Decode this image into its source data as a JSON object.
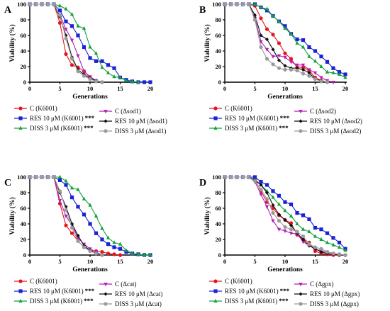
{
  "figure": {
    "style": {
      "colors": [
        "#e8141c",
        "#1a22d6",
        "#12a13a",
        "#b21fb8",
        "#111111",
        "#9a9a9a"
      ],
      "markers": [
        "circle",
        "square",
        "triangle",
        "triangle-down",
        "diamond",
        "circle"
      ]
    }
  },
  "chart_data": [
    {
      "panel_label": "A",
      "type": "line",
      "xlabel": "Generations",
      "ylabel": "Viability (%)",
      "xlim": [
        0,
        20
      ],
      "ylim": [
        0,
        100
      ],
      "xticks": [
        "0",
        "5",
        "10",
        "15",
        "20"
      ],
      "yticks": [
        "0",
        "20",
        "40",
        "60",
        "80",
        "100"
      ],
      "legend_position": "below",
      "series": [
        {
          "name": "C (K6001)",
          "sig": "",
          "x": [
            0,
            1,
            2,
            3,
            4,
            5,
            6,
            7,
            8,
            9,
            10,
            11,
            12
          ],
          "y": [
            100,
            100,
            100,
            100,
            100,
            76,
            36,
            22,
            19,
            14,
            6,
            1,
            0
          ]
        },
        {
          "name": "RES 10 μM (K6001)",
          "sig": "***",
          "x": [
            0,
            1,
            2,
            3,
            4,
            5,
            6,
            7,
            8,
            9,
            10,
            11,
            12,
            13,
            14,
            15,
            16,
            17,
            18,
            19,
            20
          ],
          "y": [
            100,
            100,
            100,
            100,
            100,
            92,
            78,
            72,
            60,
            45,
            31,
            27,
            27,
            22,
            18,
            6,
            3,
            1,
            0,
            0,
            0
          ]
        },
        {
          "name": "DISS 3 μM (K6001)",
          "sig": "***",
          "x": [
            0,
            1,
            2,
            3,
            4,
            5,
            6,
            7,
            8,
            9,
            10,
            11,
            12,
            13,
            14,
            15,
            16,
            17,
            18
          ],
          "y": [
            100,
            100,
            100,
            100,
            100,
            98,
            94,
            87,
            72,
            69,
            45,
            37,
            19,
            12,
            7,
            6,
            2,
            1,
            0
          ]
        },
        {
          "name": "C (Δsod1)",
          "sig": "",
          "x": [
            0,
            1,
            2,
            3,
            4,
            5,
            6,
            7,
            8,
            9,
            10,
            11,
            12
          ],
          "y": [
            100,
            100,
            100,
            100,
            100,
            86,
            68,
            54,
            34,
            14,
            7,
            2,
            0
          ]
        },
        {
          "name": "RES 10 μM (Δsod1)",
          "sig": "",
          "x": [
            0,
            1,
            2,
            3,
            4,
            5,
            6,
            7,
            8,
            9,
            10,
            11,
            12
          ],
          "y": [
            100,
            100,
            100,
            100,
            100,
            84,
            60,
            32,
            16,
            10,
            5,
            2,
            0
          ]
        },
        {
          "name": "DISS 3 μM (Δsod1)",
          "sig": "",
          "x": [
            0,
            1,
            2,
            3,
            4,
            5,
            6,
            7,
            8,
            9,
            10,
            11,
            12
          ],
          "y": [
            100,
            100,
            100,
            100,
            100,
            86,
            56,
            30,
            14,
            8,
            4,
            1,
            0
          ]
        }
      ]
    },
    {
      "panel_label": "B",
      "type": "line",
      "xlabel": "Generations",
      "ylabel": "Viability (%)",
      "xlim": [
        0,
        20
      ],
      "ylim": [
        0,
        100
      ],
      "xticks": [
        "0",
        "5",
        "10",
        "15",
        "20"
      ],
      "yticks": [
        "0",
        "20",
        "40",
        "60",
        "80",
        "100"
      ],
      "legend_position": "below",
      "series": [
        {
          "name": "C (K6001)",
          "sig": "",
          "x": [
            0,
            1,
            2,
            3,
            4,
            5,
            6,
            7,
            8,
            9,
            10,
            11,
            12,
            13,
            14,
            15,
            16,
            17
          ],
          "y": [
            100,
            100,
            100,
            100,
            100,
            98,
            82,
            68,
            61,
            50,
            37,
            30,
            19,
            19,
            15,
            6,
            2,
            0
          ]
        },
        {
          "name": "RES 10 μM (K6001)",
          "sig": "***",
          "x": [
            0,
            1,
            2,
            3,
            4,
            5,
            6,
            7,
            8,
            9,
            10,
            11,
            12,
            13,
            14,
            15,
            16,
            17,
            18,
            19,
            20
          ],
          "y": [
            100,
            100,
            100,
            100,
            100,
            100,
            96,
            92,
            85,
            78,
            72,
            62,
            55,
            54,
            45,
            40,
            33,
            26,
            18,
            13,
            10
          ]
        },
        {
          "name": "DISS 3 μM (K6001)",
          "sig": "***",
          "x": [
            0,
            1,
            2,
            3,
            4,
            5,
            6,
            7,
            8,
            9,
            10,
            11,
            12,
            13,
            14,
            15,
            16,
            17,
            18,
            19,
            20
          ],
          "y": [
            100,
            100,
            100,
            100,
            100,
            100,
            96,
            94,
            85,
            78,
            69,
            62,
            50,
            45,
            33,
            27,
            20,
            13,
            12,
            10,
            6
          ]
        },
        {
          "name": "C (Δsod2)",
          "sig": "",
          "x": [
            0,
            1,
            2,
            3,
            4,
            5,
            6,
            7,
            8,
            9,
            10,
            11,
            12,
            13,
            14,
            15,
            16,
            17,
            18
          ],
          "y": [
            100,
            100,
            100,
            100,
            100,
            82,
            52,
            42,
            33,
            34,
            32,
            26,
            22,
            22,
            16,
            12,
            6,
            2,
            0
          ]
        },
        {
          "name": "RES 10 μM (Δsod2)",
          "sig": "",
          "x": [
            0,
            1,
            2,
            3,
            4,
            5,
            6,
            7,
            8,
            9,
            10,
            11,
            12,
            13,
            14,
            15,
            16,
            17
          ],
          "y": [
            100,
            100,
            100,
            100,
            100,
            86,
            60,
            55,
            42,
            28,
            21,
            18,
            18,
            16,
            12,
            4,
            2,
            0
          ]
        },
        {
          "name": "DISS 3 μM (Δsod2)",
          "sig": "",
          "x": [
            0,
            1,
            2,
            3,
            4,
            5,
            6,
            7,
            8,
            9,
            10,
            11,
            12,
            13,
            14,
            15,
            16,
            17
          ],
          "y": [
            100,
            100,
            100,
            100,
            100,
            80,
            45,
            30,
            23,
            18,
            16,
            16,
            15,
            11,
            8,
            4,
            1,
            0
          ]
        }
      ]
    },
    {
      "panel_label": "C",
      "type": "line",
      "xlabel": "Generations",
      "ylabel": "Viability (%)",
      "xlim": [
        0,
        20
      ],
      "ylim": [
        0,
        100
      ],
      "xticks": [
        "0",
        "5",
        "10",
        "15",
        "20"
      ],
      "yticks": [
        "0",
        "20",
        "40",
        "60",
        "80",
        "100"
      ],
      "legend_position": "below",
      "series": [
        {
          "name": "C (K6001)",
          "sig": "",
          "x": [
            0,
            1,
            2,
            3,
            4,
            5,
            6,
            7,
            8,
            9,
            10,
            11,
            12,
            13,
            14,
            15
          ],
          "y": [
            100,
            100,
            100,
            100,
            100,
            66,
            38,
            28,
            18,
            10,
            6,
            5,
            4,
            2,
            1,
            0
          ]
        },
        {
          "name": "RES 10 μM (K6001)",
          "sig": "***",
          "x": [
            0,
            1,
            2,
            3,
            4,
            5,
            6,
            7,
            8,
            9,
            10,
            11,
            12,
            13,
            14,
            15,
            16,
            17,
            18,
            19,
            20
          ],
          "y": [
            100,
            100,
            100,
            100,
            100,
            96,
            90,
            74,
            62,
            52,
            40,
            28,
            20,
            14,
            10,
            8,
            4,
            2,
            1,
            0,
            0
          ]
        },
        {
          "name": "DISS 3 μM (K6001)",
          "sig": "***",
          "x": [
            0,
            1,
            2,
            3,
            4,
            5,
            6,
            7,
            8,
            9,
            10,
            11,
            12,
            13,
            14,
            15,
            16,
            17,
            18,
            19,
            20
          ],
          "y": [
            100,
            100,
            100,
            100,
            100,
            100,
            95,
            86,
            84,
            72,
            64,
            50,
            34,
            22,
            16,
            14,
            6,
            2,
            1,
            0,
            0
          ]
        },
        {
          "name": "C (Δcat)",
          "sig": "",
          "x": [
            0,
            1,
            2,
            3,
            4,
            5,
            6,
            7,
            8,
            9,
            10,
            11,
            12
          ],
          "y": [
            100,
            100,
            100,
            100,
            100,
            70,
            50,
            38,
            22,
            14,
            8,
            4,
            0
          ]
        },
        {
          "name": "RES 10 μM (Δcat)",
          "sig": "",
          "x": [
            0,
            1,
            2,
            3,
            4,
            5,
            6,
            7,
            8,
            9,
            10,
            11,
            12
          ],
          "y": [
            100,
            100,
            100,
            100,
            100,
            80,
            62,
            40,
            25,
            12,
            6,
            2,
            0
          ]
        },
        {
          "name": "DISS 3 μM (Δcat)",
          "sig": "",
          "x": [
            0,
            1,
            2,
            3,
            4,
            5,
            6,
            7,
            8,
            9,
            10,
            11,
            12
          ],
          "y": [
            100,
            100,
            100,
            100,
            100,
            82,
            58,
            35,
            18,
            10,
            5,
            2,
            0
          ]
        }
      ]
    },
    {
      "panel_label": "D",
      "type": "line",
      "xlabel": "Generations",
      "ylabel": "Viability (%)",
      "xlim": [
        0,
        20
      ],
      "ylim": [
        0,
        100
      ],
      "xticks": [
        "0",
        "5",
        "10",
        "15",
        "20"
      ],
      "yticks": [
        "0",
        "20",
        "40",
        "60",
        "80",
        "100"
      ],
      "legend_position": "below",
      "series": [
        {
          "name": "C (K6001)",
          "sig": "",
          "x": [
            0,
            1,
            2,
            3,
            4,
            5,
            6,
            7,
            8,
            9,
            10,
            11,
            12,
            13,
            14,
            15,
            16,
            17,
            18,
            19,
            20
          ],
          "y": [
            100,
            100,
            100,
            100,
            100,
            97,
            82,
            68,
            60,
            51,
            45,
            41,
            26,
            20,
            16,
            5,
            2,
            1,
            0,
            0,
            0
          ]
        },
        {
          "name": "RES 10 μM (K6001)",
          "sig": "***",
          "x": [
            0,
            1,
            2,
            3,
            4,
            5,
            6,
            7,
            8,
            9,
            10,
            11,
            12,
            13,
            14,
            15,
            16,
            17,
            18,
            19,
            20
          ],
          "y": [
            100,
            100,
            100,
            100,
            100,
            100,
            94,
            90,
            82,
            76,
            68,
            65,
            54,
            51,
            46,
            35,
            33,
            28,
            22,
            16,
            8
          ]
        },
        {
          "name": "DISS 3 μM (K6001)",
          "sig": "***",
          "x": [
            0,
            1,
            2,
            3,
            4,
            5,
            6,
            7,
            8,
            9,
            10,
            11,
            12,
            13,
            14,
            15,
            16,
            17,
            18,
            19,
            20
          ],
          "y": [
            100,
            100,
            100,
            100,
            100,
            97,
            90,
            82,
            74,
            65,
            57,
            50,
            40,
            33,
            30,
            24,
            20,
            16,
            13,
            10,
            6
          ]
        },
        {
          "name": "C (Δgpx)",
          "sig": "",
          "x": [
            0,
            1,
            2,
            3,
            4,
            5,
            6,
            7,
            8,
            9,
            10,
            11,
            12,
            13,
            14,
            15,
            16,
            17,
            18,
            19,
            20
          ],
          "y": [
            100,
            100,
            100,
            100,
            100,
            94,
            78,
            62,
            44,
            33,
            31,
            28,
            27,
            17,
            12,
            8,
            5,
            4,
            2,
            1,
            0
          ]
        },
        {
          "name": "RES 10 μM (Δgpx)",
          "sig": "",
          "x": [
            0,
            1,
            2,
            3,
            4,
            5,
            6,
            7,
            8,
            9,
            10,
            11,
            12,
            13,
            14,
            15,
            16,
            17,
            18,
            19,
            20
          ],
          "y": [
            100,
            100,
            100,
            100,
            100,
            96,
            90,
            80,
            64,
            52,
            45,
            38,
            28,
            20,
            12,
            8,
            4,
            2,
            1,
            0,
            0
          ]
        },
        {
          "name": "DISS 3 μM (Δgpx)",
          "sig": "",
          "x": [
            0,
            1,
            2,
            3,
            4,
            5,
            6,
            7,
            8,
            9,
            10,
            11,
            12,
            13,
            14,
            15,
            16,
            17,
            18,
            19,
            20
          ],
          "y": [
            100,
            100,
            100,
            100,
            100,
            95,
            84,
            72,
            54,
            44,
            36,
            33,
            30,
            24,
            14,
            10,
            8,
            4,
            2,
            1,
            0
          ]
        }
      ]
    }
  ]
}
